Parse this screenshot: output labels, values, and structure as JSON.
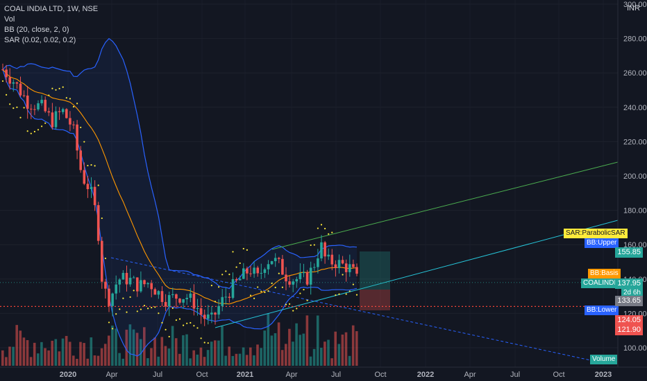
{
  "header": {
    "title": "COAL INDIA LTD, 1W, NSE",
    "indicators": [
      "Vol",
      "BB (20, close, 2, 0)",
      "SAR (0.02, 0.02, 0.2)"
    ]
  },
  "currency": "INR",
  "labels": {
    "sar": "SAR:ParabolicSAR",
    "bb_upper": "BB:Upper",
    "bb_basis": "BB:Basis",
    "bb_lower": "BB:Lower",
    "symbol": "COALINDIA",
    "volume": "Volume",
    "countdown": "2d 6h"
  },
  "price_tags": {
    "upper": "155.85",
    "last": "137.95",
    "basis": "133.65",
    "lower1": "124.05",
    "lower2": "121.90"
  },
  "colors": {
    "background": "#131722",
    "up": "#26a69a",
    "down": "#ef5350",
    "bb_band": "#2962ff",
    "bb_basis": "#ff9800",
    "sar": "#ffeb3b",
    "trend_green": "#4caf50",
    "trend_teal": "#26c6da",
    "dashed_blue": "#2962ff",
    "horizontal_red": "#f44336"
  },
  "chart_data": {
    "type": "candlestick",
    "ylim": [
      90,
      300
    ],
    "y_ticks": [
      100,
      120,
      140,
      160,
      180,
      200,
      220,
      240,
      260,
      280,
      300
    ],
    "x_ticks": [
      "2020",
      "Apr",
      "Jul",
      "Oct",
      "2021",
      "Apr",
      "Jul",
      "Oct",
      "2022",
      "Apr",
      "Jul",
      "Oct",
      "2023"
    ],
    "horizontal_line": 124.05,
    "last_price": 137.95
  }
}
